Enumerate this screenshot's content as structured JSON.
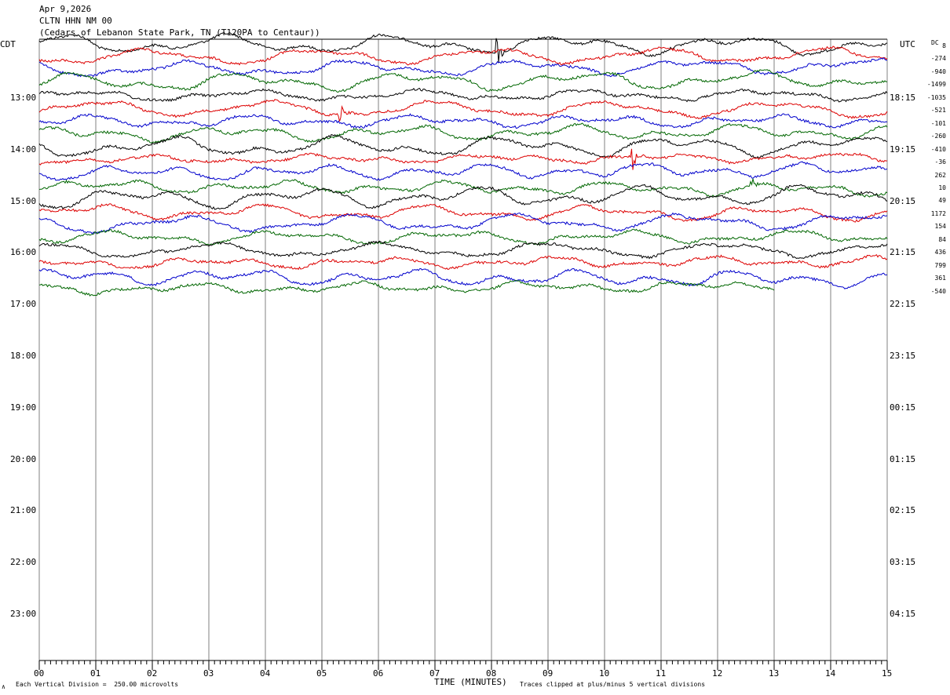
{
  "header": {
    "date": "Apr 9,2026",
    "station": "CLTN HHN NM 00",
    "location": "(Cedars of Lebanon State Park, TN (T120PA to Centaur))"
  },
  "left_zone": "CDT",
  "right_zone": "UTC",
  "dc_label": "DC",
  "footer": {
    "scale_note": "Each Vertical Division =  250.00 microvolts",
    "xlabel": "TIME (MINUTES)",
    "clip_note": "Traces clipped at plus/minus 5 vertical divisions"
  },
  "colors": {
    "black": "#000000",
    "red": "#dd0000",
    "blue": "#0000cc",
    "green": "#006600",
    "grid": "#808080"
  },
  "chart_data": {
    "type": "line",
    "title": "CLTN HHN NM 00",
    "xlabel": "TIME (MINUTES)",
    "xlim": [
      0,
      15
    ],
    "x_ticks": [
      "00",
      "01",
      "02",
      "03",
      "04",
      "05",
      "06",
      "07",
      "08",
      "09",
      "10",
      "11",
      "12",
      "13",
      "14",
      "15"
    ],
    "left_time_labels": [
      "13:00",
      "14:00",
      "15:00",
      "16:00",
      "17:00",
      "18:00",
      "19:00",
      "20:00",
      "21:00",
      "22:00",
      "23:00"
    ],
    "right_time_labels": [
      "18:15",
      "19:15",
      "20:15",
      "21:15",
      "22:15",
      "23:15",
      "00:15",
      "01:15",
      "02:15",
      "03:15",
      "04:15"
    ],
    "trace_color_cycle": [
      "black",
      "red",
      "blue",
      "green"
    ],
    "dc_offsets": [
      "8",
      "-274",
      "-940",
      "-1499",
      "-1035",
      "-521",
      "-101",
      "-260",
      "-410",
      "-36",
      "262",
      "10",
      "49",
      "1172",
      "154",
      "84",
      "436",
      "799",
      "361",
      "-540"
    ],
    "trace_count": 20,
    "last_trace_end_minute": 13,
    "events": [
      {
        "trace": 0,
        "minute": 8.1
      },
      {
        "trace": 5,
        "minute": 5.3
      },
      {
        "trace": 9,
        "minute": 10.5
      },
      {
        "trace": 11,
        "minute": 12.6
      }
    ]
  }
}
